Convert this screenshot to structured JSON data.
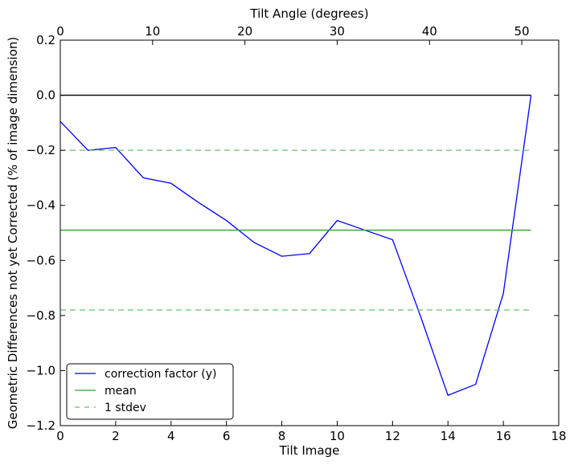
{
  "chart_data": {
    "type": "line",
    "xlabel": "Tilt Image",
    "ylabel": "Geometric Differences not yet Corrected (% of image dimension)",
    "x2label": "Tilt Angle (degrees)",
    "xlim": [
      0,
      18
    ],
    "ylim": [
      -1.2,
      0.2
    ],
    "x2lim": [
      0,
      54
    ],
    "xticks": [
      "0",
      "2",
      "4",
      "6",
      "8",
      "10",
      "12",
      "14",
      "16",
      "18"
    ],
    "xtick_values": [
      0,
      2,
      4,
      6,
      8,
      10,
      12,
      14,
      16,
      18
    ],
    "yticks": [
      "0.2",
      "0.0",
      "−0.2",
      "−0.4",
      "−0.6",
      "−0.8",
      "−1.0",
      "−1.2"
    ],
    "ytick_values": [
      0.2,
      0.0,
      -0.2,
      -0.4,
      -0.6,
      -0.8,
      -1.0,
      -1.2
    ],
    "x2ticks": [
      "0",
      "10",
      "20",
      "30",
      "40",
      "50"
    ],
    "x2tick_values": [
      0,
      10,
      20,
      30,
      40,
      50
    ],
    "grid": false,
    "legend_position": "lower-left",
    "legend": [
      "correction factor (y)",
      "mean",
      "1 stdev"
    ],
    "series": [
      {
        "name": "correction factor (y)",
        "color": "#0000ff",
        "style": "solid",
        "x": [
          0,
          1,
          2,
          3,
          4,
          5,
          6,
          7,
          8,
          9,
          10,
          11,
          12,
          13,
          14,
          15,
          16,
          17
        ],
        "y": [
          -0.095,
          -0.2,
          -0.19,
          -0.3,
          -0.32,
          -0.39,
          -0.455,
          -0.535,
          -0.585,
          -0.575,
          -0.455,
          -0.49,
          -0.525,
          -0.8,
          -1.09,
          -1.05,
          -0.72,
          0.0
        ]
      },
      {
        "name": "mean",
        "color": "#3a9a3a",
        "style": "solid",
        "x": [
          0,
          17
        ],
        "y": [
          -0.49,
          -0.49
        ]
      },
      {
        "name": "1 stdev",
        "color": "#6bbf6b",
        "style": "dashed",
        "x": [
          0,
          17
        ],
        "y": [
          -0.2,
          -0.2
        ]
      },
      {
        "name": "",
        "color": "#6bbf6b",
        "style": "dashed",
        "x": [
          0,
          17
        ],
        "y": [
          -0.78,
          -0.78
        ]
      },
      {
        "name": "",
        "color": "#000000",
        "style": "solid",
        "x": [
          0,
          17
        ],
        "y": [
          0.0,
          0.0
        ]
      }
    ]
  }
}
